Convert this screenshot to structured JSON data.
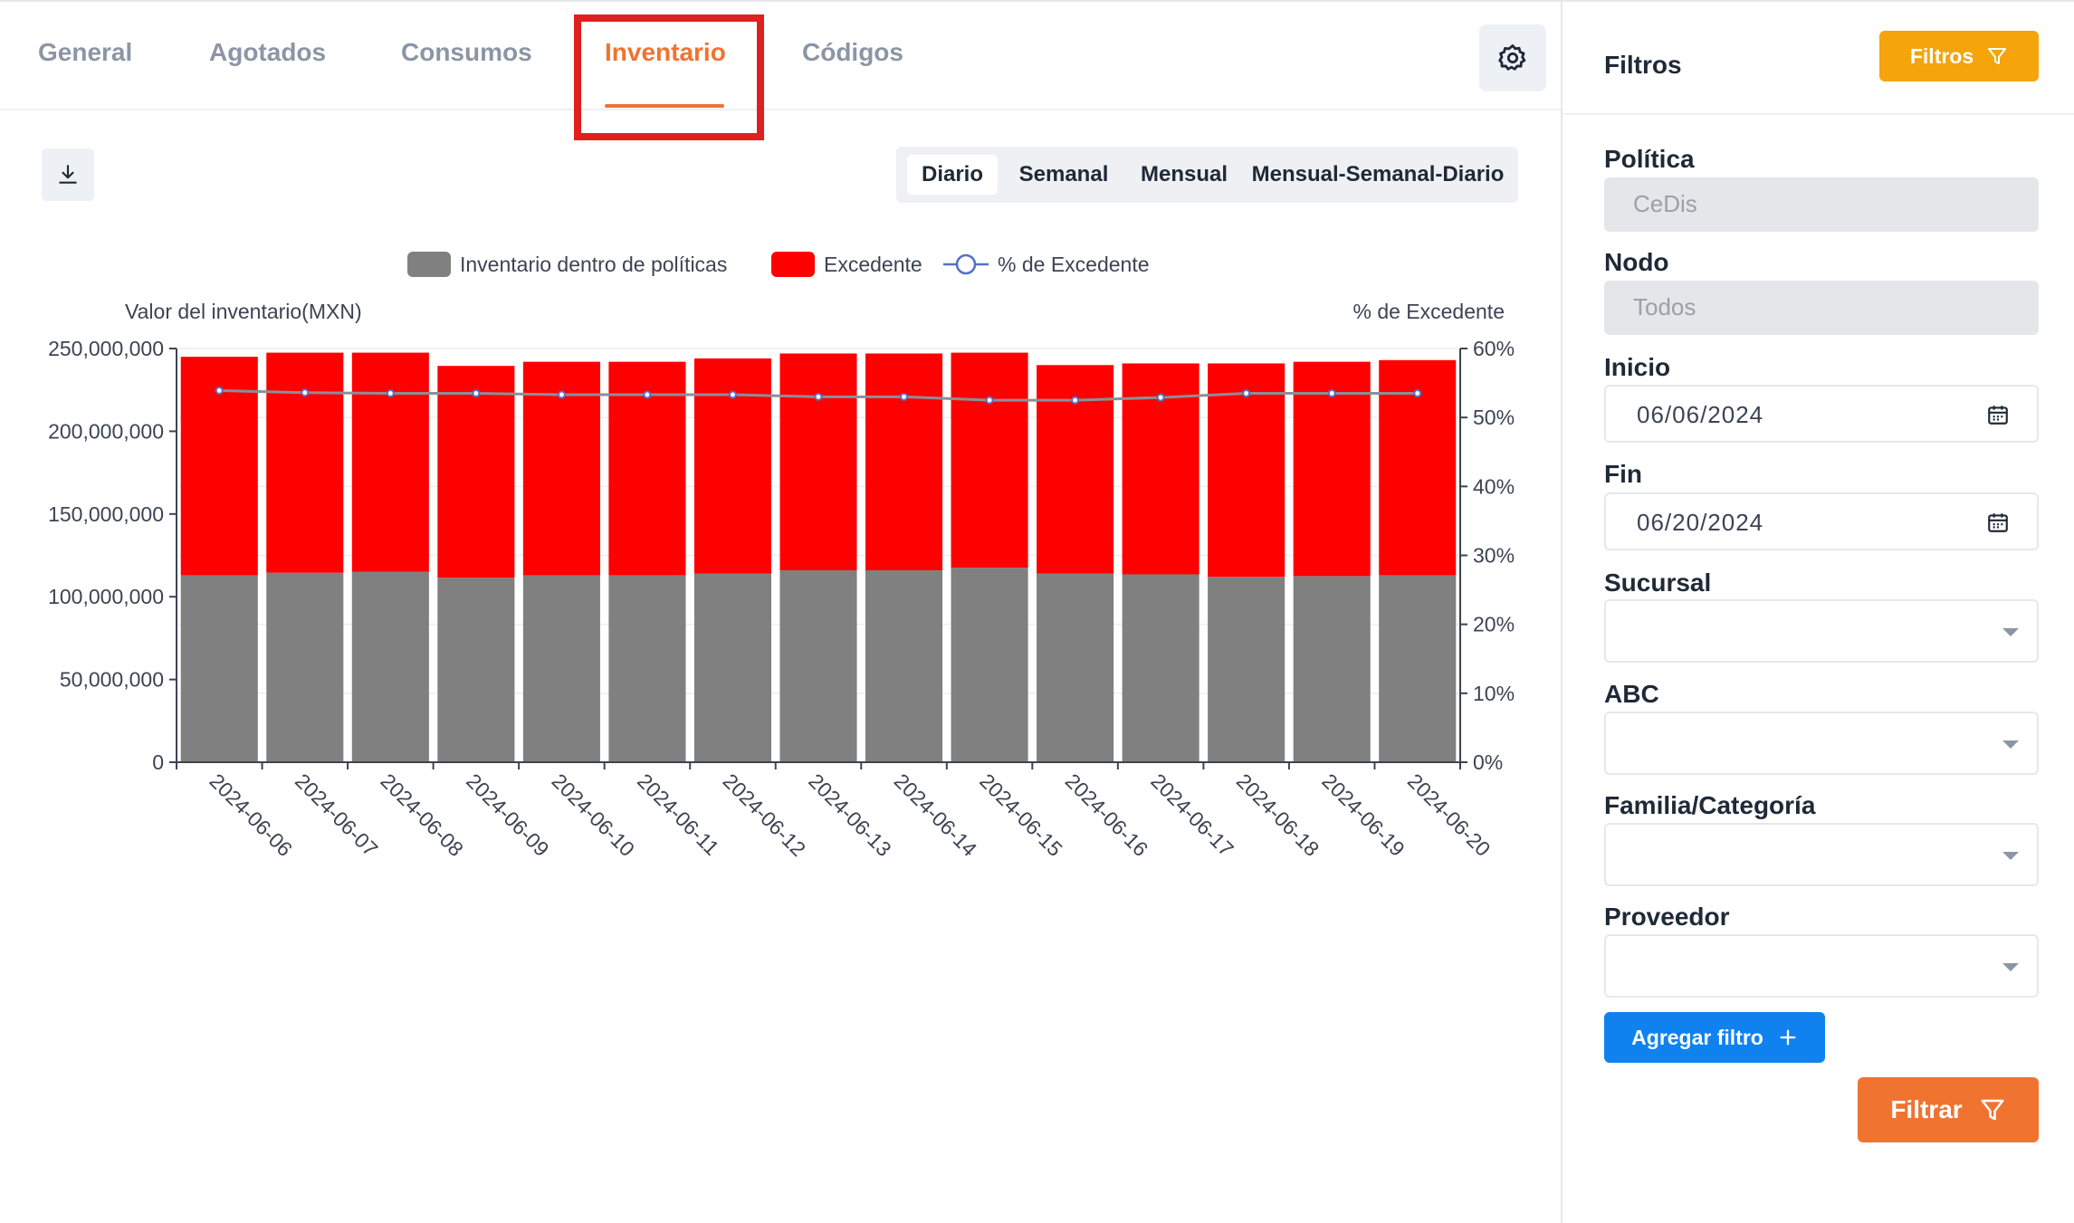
{
  "tabs": [
    {
      "label": "General"
    },
    {
      "label": "Agotados"
    },
    {
      "label": "Consumos"
    },
    {
      "label": "Inventario"
    },
    {
      "label": "Códigos"
    }
  ],
  "active_tab": "Inventario",
  "icons": {
    "settings": "gear-icon",
    "download": "download-icon",
    "calendar": "calendar-icon",
    "filter": "funnel-icon",
    "plus": "plus-icon"
  },
  "period_toggle": {
    "options": [
      {
        "label": "Diario"
      },
      {
        "label": "Semanal"
      },
      {
        "label": "Mensual"
      },
      {
        "label": "Mensual-Semanal-Diario"
      }
    ],
    "selected": "Diario"
  },
  "chart_data": {
    "type": "bar",
    "stacked": true,
    "categories": [
      "2024-06-06",
      "2024-06-07",
      "2024-06-08",
      "2024-06-09",
      "2024-06-10",
      "2024-06-11",
      "2024-06-12",
      "2024-06-13",
      "2024-06-14",
      "2024-06-15",
      "2024-06-16",
      "2024-06-17",
      "2024-06-18",
      "2024-06-19",
      "2024-06-20"
    ],
    "series": [
      {
        "name": "Inventario dentro de políticas",
        "type": "bar",
        "axis": "left",
        "color": "#808080",
        "values": [
          113000000,
          114500000,
          115000000,
          111500000,
          113000000,
          113000000,
          114000000,
          116000000,
          116000000,
          117500000,
          114000000,
          113500000,
          112000000,
          112500000,
          113000000
        ]
      },
      {
        "name": "Excedente",
        "type": "bar",
        "axis": "left",
        "color": "#ff0000",
        "values": [
          132000000,
          133000000,
          132500000,
          128000000,
          129000000,
          129000000,
          130000000,
          131000000,
          131000000,
          130000000,
          126000000,
          127500000,
          129000000,
          129500000,
          130000000
        ]
      },
      {
        "name": "% de Excedente",
        "type": "line",
        "axis": "right",
        "color": "#8a8f99",
        "marker_color": "#5470c6",
        "values": [
          53.9,
          53.6,
          53.5,
          53.5,
          53.3,
          53.3,
          53.3,
          53.0,
          53.0,
          52.5,
          52.5,
          52.9,
          53.5,
          53.5,
          53.5
        ]
      }
    ],
    "ylabel": "Valor del inventario(MXN)",
    "y2label": "% de Excedente",
    "ylim": [
      0,
      250000000
    ],
    "y_ticks": [
      "0",
      "50,000,000",
      "100,000,000",
      "150,000,000",
      "200,000,000",
      "250,000,000"
    ],
    "y2lim": [
      0,
      60
    ],
    "y2_ticks": [
      "0%",
      "10%",
      "20%",
      "30%",
      "40%",
      "50%",
      "60%"
    ],
    "legend_position": "top-center",
    "grid": true
  },
  "sidebar": {
    "title": "Filtros",
    "filter_button": "Filtros",
    "fields": {
      "politica": {
        "label": "Política",
        "value": "CeDis"
      },
      "nodo": {
        "label": "Nodo",
        "value": "Todos"
      },
      "inicio": {
        "label": "Inicio",
        "value": "06/06/2024"
      },
      "fin": {
        "label": "Fin",
        "value": "06/20/2024"
      },
      "sucursal": {
        "label": "Sucursal",
        "value": ""
      },
      "abc": {
        "label": "ABC",
        "value": ""
      },
      "familia": {
        "label": "Familia/Categoría",
        "value": ""
      },
      "proveedor": {
        "label": "Proveedor",
        "value": ""
      }
    },
    "add_filter": "Agregar filtro",
    "apply": "Filtrar"
  },
  "colors": {
    "accent": "#f07330",
    "filtros_btn": "#f5a40b",
    "add_btn": "#0f82f0",
    "highlight": "#e0201e"
  }
}
